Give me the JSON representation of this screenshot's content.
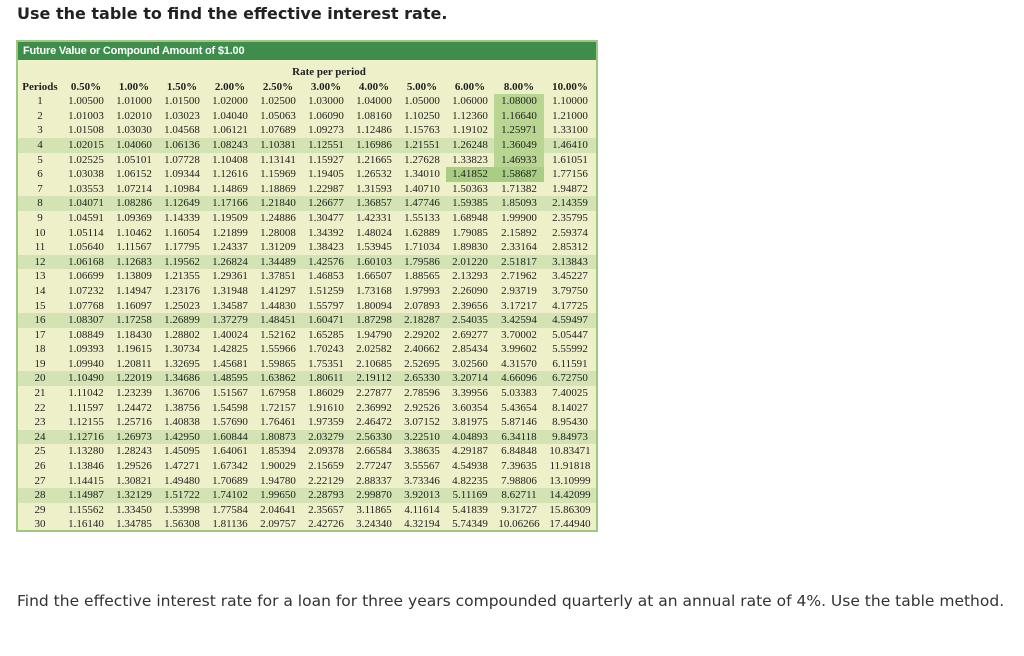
{
  "title": "Use the table to find the effective interest rate.",
  "table": {
    "caption": "Future Value or Compound Amount of $1.00",
    "group_header": "Rate per period",
    "periods_header": "Periods",
    "rates": [
      "0.50%",
      "1.00%",
      "1.50%",
      "2.00%",
      "2.50%",
      "3.00%",
      "4.00%",
      "5.00%",
      "6.00%",
      "8.00%",
      "10.00%"
    ],
    "highlight_color": "#b8d592",
    "stripe_color": "#d3e3b3",
    "highlighted_cells": [
      [
        1,
        "8.00%"
      ],
      [
        2,
        "8.00%"
      ],
      [
        3,
        "8.00%"
      ],
      [
        4,
        "8.00%"
      ],
      [
        5,
        "8.00%"
      ],
      [
        6,
        "6.00%"
      ],
      [
        6,
        "8.00%"
      ]
    ],
    "rows": [
      {
        "period": "1",
        "values": [
          "1.00500",
          "1.01000",
          "1.01500",
          "1.02000",
          "1.02500",
          "1.03000",
          "1.04000",
          "1.05000",
          "1.06000",
          "1.08000",
          "1.10000"
        ]
      },
      {
        "period": "2",
        "values": [
          "1.01003",
          "1.02010",
          "1.03023",
          "1.04040",
          "1.05063",
          "1.06090",
          "1.08160",
          "1.10250",
          "1.12360",
          "1.16640",
          "1.21000"
        ]
      },
      {
        "period": "3",
        "values": [
          "1.01508",
          "1.03030",
          "1.04568",
          "1.06121",
          "1.07689",
          "1.09273",
          "1.12486",
          "1.15763",
          "1.19102",
          "1.25971",
          "1.33100"
        ]
      },
      {
        "period": "4",
        "values": [
          "1.02015",
          "1.04060",
          "1.06136",
          "1.08243",
          "1.10381",
          "1.12551",
          "1.16986",
          "1.21551",
          "1.26248",
          "1.36049",
          "1.46410"
        ]
      },
      {
        "period": "5",
        "values": [
          "1.02525",
          "1.05101",
          "1.07728",
          "1.10408",
          "1.13141",
          "1.15927",
          "1.21665",
          "1.27628",
          "1.33823",
          "1.46933",
          "1.61051"
        ]
      },
      {
        "period": "6",
        "values": [
          "1.03038",
          "1.06152",
          "1.09344",
          "1.12616",
          "1.15969",
          "1.19405",
          "1.26532",
          "1.34010",
          "1.41852",
          "1.58687",
          "1.77156"
        ]
      },
      {
        "period": "7",
        "values": [
          "1.03553",
          "1.07214",
          "1.10984",
          "1.14869",
          "1.18869",
          "1.22987",
          "1.31593",
          "1.40710",
          "1.50363",
          "1.71382",
          "1.94872"
        ]
      },
      {
        "period": "8",
        "values": [
          "1.04071",
          "1.08286",
          "1.12649",
          "1.17166",
          "1.21840",
          "1.26677",
          "1.36857",
          "1.47746",
          "1.59385",
          "1.85093",
          "2.14359"
        ]
      },
      {
        "period": "9",
        "values": [
          "1.04591",
          "1.09369",
          "1.14339",
          "1.19509",
          "1.24886",
          "1.30477",
          "1.42331",
          "1.55133",
          "1.68948",
          "1.99900",
          "2.35795"
        ]
      },
      {
        "period": "10",
        "values": [
          "1.05114",
          "1.10462",
          "1.16054",
          "1.21899",
          "1.28008",
          "1.34392",
          "1.48024",
          "1.62889",
          "1.79085",
          "2.15892",
          "2.59374"
        ]
      },
      {
        "period": "11",
        "values": [
          "1.05640",
          "1.11567",
          "1.17795",
          "1.24337",
          "1.31209",
          "1.38423",
          "1.53945",
          "1.71034",
          "1.89830",
          "2.33164",
          "2.85312"
        ]
      },
      {
        "period": "12",
        "values": [
          "1.06168",
          "1.12683",
          "1.19562",
          "1.26824",
          "1.34489",
          "1.42576",
          "1.60103",
          "1.79586",
          "2.01220",
          "2.51817",
          "3.13843"
        ]
      },
      {
        "period": "13",
        "values": [
          "1.06699",
          "1.13809",
          "1.21355",
          "1.29361",
          "1.37851",
          "1.46853",
          "1.66507",
          "1.88565",
          "2.13293",
          "2.71962",
          "3.45227"
        ]
      },
      {
        "period": "14",
        "values": [
          "1.07232",
          "1.14947",
          "1.23176",
          "1.31948",
          "1.41297",
          "1.51259",
          "1.73168",
          "1.97993",
          "2.26090",
          "2.93719",
          "3.79750"
        ]
      },
      {
        "period": "15",
        "values": [
          "1.07768",
          "1.16097",
          "1.25023",
          "1.34587",
          "1.44830",
          "1.55797",
          "1.80094",
          "2.07893",
          "2.39656",
          "3.17217",
          "4.17725"
        ]
      },
      {
        "period": "16",
        "values": [
          "1.08307",
          "1.17258",
          "1.26899",
          "1.37279",
          "1.48451",
          "1.60471",
          "1.87298",
          "2.18287",
          "2.54035",
          "3.42594",
          "4.59497"
        ]
      },
      {
        "period": "17",
        "values": [
          "1.08849",
          "1.18430",
          "1.28802",
          "1.40024",
          "1.52162",
          "1.65285",
          "1.94790",
          "2.29202",
          "2.69277",
          "3.70002",
          "5.05447"
        ]
      },
      {
        "period": "18",
        "values": [
          "1.09393",
          "1.19615",
          "1.30734",
          "1.42825",
          "1.55966",
          "1.70243",
          "2.02582",
          "2.40662",
          "2.85434",
          "3.99602",
          "5.55992"
        ]
      },
      {
        "period": "19",
        "values": [
          "1.09940",
          "1.20811",
          "1.32695",
          "1.45681",
          "1.59865",
          "1.75351",
          "2.10685",
          "2.52695",
          "3.02560",
          "4.31570",
          "6.11591"
        ]
      },
      {
        "period": "20",
        "values": [
          "1.10490",
          "1.22019",
          "1.34686",
          "1.48595",
          "1.63862",
          "1.80611",
          "2.19112",
          "2.65330",
          "3.20714",
          "4.66096",
          "6.72750"
        ]
      },
      {
        "period": "21",
        "values": [
          "1.11042",
          "1.23239",
          "1.36706",
          "1.51567",
          "1.67958",
          "1.86029",
          "2.27877",
          "2.78596",
          "3.39956",
          "5.03383",
          "7.40025"
        ]
      },
      {
        "period": "22",
        "values": [
          "1.11597",
          "1.24472",
          "1.38756",
          "1.54598",
          "1.72157",
          "1.91610",
          "2.36992",
          "2.92526",
          "3.60354",
          "5.43654",
          "8.14027"
        ]
      },
      {
        "period": "23",
        "values": [
          "1.12155",
          "1.25716",
          "1.40838",
          "1.57690",
          "1.76461",
          "1.97359",
          "2.46472",
          "3.07152",
          "3.81975",
          "5.87146",
          "8.95430"
        ]
      },
      {
        "period": "24",
        "values": [
          "1.12716",
          "1.26973",
          "1.42950",
          "1.60844",
          "1.80873",
          "2.03279",
          "2.56330",
          "3.22510",
          "4.04893",
          "6.34118",
          "9.84973"
        ]
      },
      {
        "period": "25",
        "values": [
          "1.13280",
          "1.28243",
          "1.45095",
          "1.64061",
          "1.85394",
          "2.09378",
          "2.66584",
          "3.38635",
          "4.29187",
          "6.84848",
          "10.83471"
        ]
      },
      {
        "period": "26",
        "values": [
          "1.13846",
          "1.29526",
          "1.47271",
          "1.67342",
          "1.90029",
          "2.15659",
          "2.77247",
          "3.55567",
          "4.54938",
          "7.39635",
          "11.91818"
        ]
      },
      {
        "period": "27",
        "values": [
          "1.14415",
          "1.30821",
          "1.49480",
          "1.70689",
          "1.94780",
          "2.22129",
          "2.88337",
          "3.73346",
          "4.82235",
          "7.98806",
          "13.10999"
        ]
      },
      {
        "period": "28",
        "values": [
          "1.14987",
          "1.32129",
          "1.51722",
          "1.74102",
          "1.99650",
          "2.28793",
          "2.99870",
          "3.92013",
          "5.11169",
          "8.62711",
          "14.42099"
        ]
      },
      {
        "period": "29",
        "values": [
          "1.15562",
          "1.33450",
          "1.53998",
          "1.77584",
          "2.04641",
          "2.35657",
          "3.11865",
          "4.11614",
          "5.41839",
          "9.31727",
          "15.86309"
        ]
      },
      {
        "period": "30",
        "values": [
          "1.16140",
          "1.34785",
          "1.56308",
          "1.81136",
          "2.09757",
          "2.42726",
          "3.24340",
          "4.32194",
          "5.74349",
          "10.06266",
          "17.44940"
        ]
      }
    ]
  },
  "question": "Find the effective interest rate for a loan for three years compounded quarterly at an annual rate of 4%. Use the table method."
}
